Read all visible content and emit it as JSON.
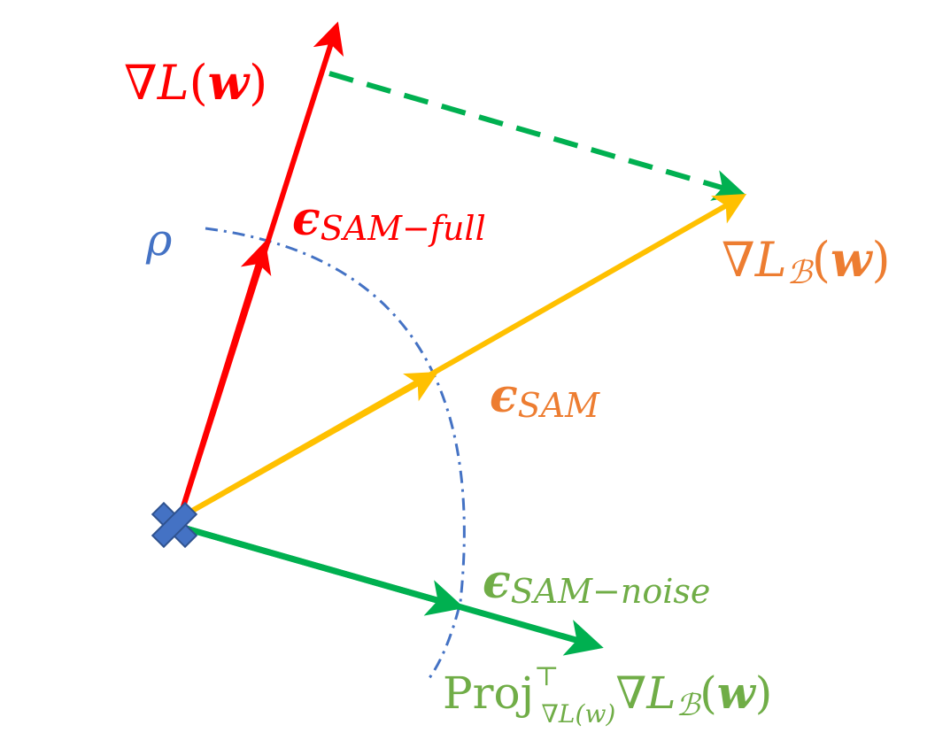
{
  "colors": {
    "red": "#ff0000",
    "yellow": "#ffc000",
    "green": "#00b050",
    "blue_dashdot": "#4472c4",
    "label_orange": "#ed7d31",
    "label_green": "#70ad47",
    "marker_blue": "#4472c4"
  },
  "labels": {
    "grad_full": {
      "symbol": "∇",
      "var": "L",
      "open": "(",
      "arg": "w",
      "close": ")"
    },
    "grad_batch": {
      "symbol": "∇",
      "var": "L",
      "sub": "ℬ",
      "open": "(",
      "arg": "w",
      "close": ")"
    },
    "eps_full": {
      "eps": "ϵ",
      "sub": "SAM−full"
    },
    "eps_sam": {
      "eps": "ϵ",
      "sub": "SAM"
    },
    "eps_noise": {
      "eps": "ϵ",
      "sub": "SAM−noise"
    },
    "rho": "ρ",
    "proj": {
      "op": "Proj",
      "sup": "⊤",
      "sub": "∇L(w)",
      "symbol": "∇",
      "var": "L",
      "sub2": "ℬ",
      "open": "(",
      "arg": "w",
      "close": ")"
    }
  },
  "icons": {
    "origin": "cross-marker-icon"
  }
}
